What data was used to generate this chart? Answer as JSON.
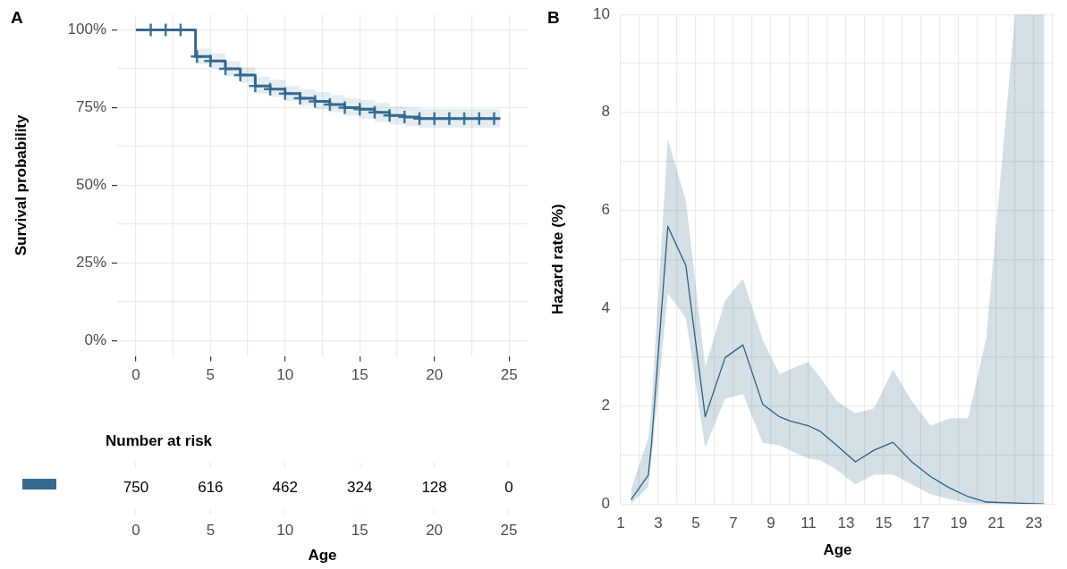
{
  "chart_data": [
    {
      "type": "step",
      "title": "A",
      "ylabel": "Survival probability",
      "xlim": [
        -1.25,
        26.25
      ],
      "xticks": [
        0,
        {
          "value": 2.5,
          "label": null
        },
        5,
        {
          "value": 7.5,
          "label": null
        },
        10,
        {
          "value": 12.5,
          "label": null
        },
        15,
        {
          "value": 17.5,
          "label": null
        },
        20,
        {
          "value": 22.5,
          "label": null
        },
        25
      ],
      "ylim": [
        -5,
        105
      ],
      "yticks": [
        {
          "value": 0,
          "label": "0%"
        },
        {
          "value": 12.5,
          "label": null
        },
        {
          "value": 25,
          "label": "25%"
        },
        {
          "value": 37.5,
          "label": null
        },
        {
          "value": 50,
          "label": "50%"
        },
        {
          "value": 62.5,
          "label": null
        },
        {
          "value": 75,
          "label": "75%"
        },
        {
          "value": 87.5,
          "label": null
        },
        {
          "value": 100,
          "label": "100%"
        }
      ],
      "grid": true,
      "series": [
        {
          "type": "step",
          "color": "#35698f",
          "x": [
            0,
            4,
            5,
            6,
            7,
            8,
            9,
            10,
            11,
            12,
            13,
            14,
            15,
            16,
            17,
            18,
            19,
            24.4
          ],
          "values": [
            100,
            91.5,
            90,
            87.5,
            85.5,
            82,
            81,
            79.5,
            78,
            77,
            76,
            75,
            74.5,
            73.5,
            72.5,
            72,
            71.5,
            71.5
          ],
          "lower": [
            100,
            89,
            87.5,
            85,
            83,
            79.5,
            78.5,
            77,
            75.5,
            74.5,
            73.5,
            72.5,
            71.5,
            70.5,
            69.5,
            69,
            68.5,
            68.5
          ],
          "upper": [
            100,
            94,
            92.5,
            90,
            88,
            85,
            84,
            82,
            81,
            80,
            79,
            78,
            77.5,
            76.5,
            75.5,
            75,
            74.5,
            74.5
          ]
        },
        {
          "type": "scatter",
          "marker": "cross",
          "color": "#3a77a0",
          "x": [
            1,
            2,
            3,
            4.1,
            5,
            6,
            7,
            8,
            9,
            10,
            11,
            12,
            13,
            14,
            15,
            16,
            17,
            18,
            19,
            20,
            21,
            22,
            23,
            24
          ],
          "values": [
            100,
            100,
            100,
            91.5,
            90,
            87.5,
            85.5,
            82,
            81,
            79.5,
            78,
            77,
            76,
            75,
            74.5,
            73.5,
            72.5,
            72,
            71.5,
            71.5,
            71.5,
            71.5,
            71.5,
            71.5
          ]
        }
      ]
    },
    {
      "type": "heatmap",
      "title": "Number at risk",
      "xlabel": "Age",
      "categories": [
        "0",
        "5",
        "10",
        "15",
        "20",
        "25"
      ],
      "y_categories": [
        null
      ],
      "tick_labels": "x",
      "grid": true,
      "data_labels": true,
      "cells": [
        [
          750,
          616,
          462,
          324,
          128,
          0
        ]
      ]
    },
    {
      "type": "line",
      "title": "B",
      "xlabel": "Age",
      "ylabel": "Hazard rate (%)",
      "xlim": [
        1,
        24.1
      ],
      "xticks": [
        1,
        {
          "value": 2,
          "label": null
        },
        3,
        {
          "value": 4,
          "label": null
        },
        5,
        {
          "value": 6,
          "label": null
        },
        7,
        {
          "value": 8,
          "label": null
        },
        9,
        {
          "value": 10,
          "label": null
        },
        11,
        {
          "value": 12,
          "label": null
        },
        13,
        {
          "value": 14,
          "label": null
        },
        15,
        {
          "value": 16,
          "label": null
        },
        17,
        {
          "value": 18,
          "label": null
        },
        19,
        {
          "value": 20,
          "label": null
        },
        21,
        {
          "value": 22,
          "label": null
        },
        23,
        {
          "value": 24,
          "label": null
        }
      ],
      "ylim": [
        0,
        10
      ],
      "yticks": [
        0,
        {
          "value": 1,
          "label": null
        },
        2,
        {
          "value": 3,
          "label": null
        },
        4,
        {
          "value": 5,
          "label": null
        },
        6,
        {
          "value": 7,
          "label": null
        },
        8,
        {
          "value": 9,
          "label": null
        },
        10
      ],
      "grid": true,
      "series": [
        {
          "type": "line",
          "color": "#2f5f80",
          "x": [
            1.55,
            2.47,
            2.64,
            3.51,
            4.47,
            5.5,
            6.56,
            7.51,
            8.56,
            9.46,
            10,
            10.98,
            11.6,
            12.5,
            13.5,
            14.5,
            15.5,
            16.5,
            17.5,
            18.5,
            19.5,
            20.47,
            22,
            23.55
          ],
          "values": [
            0.09,
            0.59,
            1.23,
            5.67,
            4.87,
            1.78,
            2.99,
            3.25,
            2.04,
            1.78,
            1.7,
            1.6,
            1.49,
            1.2,
            0.86,
            1.1,
            1.26,
            0.86,
            0.56,
            0.33,
            0.15,
            0.04,
            0.02,
            0
          ],
          "lower": [
            0,
            0.35,
            0.9,
            4.3,
            3.8,
            1.15,
            2.15,
            2.25,
            1.25,
            1.2,
            1.1,
            0.93,
            0.9,
            0.7,
            0.4,
            0.6,
            0.6,
            0.4,
            0.2,
            0.1,
            0.02,
            0,
            0,
            0
          ],
          "upper": [
            0.3,
            1.35,
            2,
            7.45,
            6.2,
            2.8,
            4.15,
            4.6,
            3.35,
            2.65,
            2.75,
            2.9,
            2.6,
            2.1,
            1.85,
            1.95,
            2.75,
            2.1,
            1.6,
            1.75,
            1.75,
            3.4,
            10,
            10
          ]
        }
      ]
    }
  ]
}
